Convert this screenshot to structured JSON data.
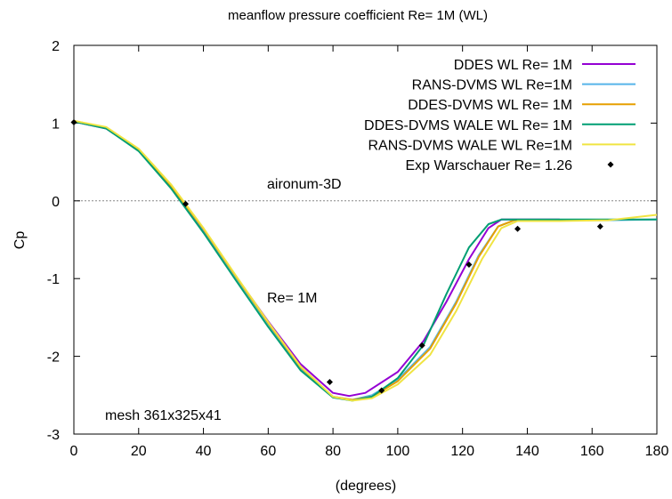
{
  "chart_data": {
    "type": "line",
    "title": "meanflow pressure coefficient  Re= 1M (WL)",
    "xlabel": "(degrees)",
    "ylabel": "Cp",
    "xlim": [
      0,
      180
    ],
    "ylim": [
      -3,
      2
    ],
    "xticks": [
      0,
      20,
      40,
      60,
      80,
      100,
      120,
      140,
      160,
      180
    ],
    "yticks": [
      -3,
      -2,
      -1,
      0,
      1,
      2
    ],
    "grid": false,
    "legend_position": "top-right",
    "zero_line": true,
    "annotations": [
      "aironum-3D",
      "Re= 1M",
      "mesh 361x325x41"
    ],
    "series": [
      {
        "name": "DDES WL Re= 1M",
        "color": "#9400d3",
        "points": [
          [
            0,
            1.02
          ],
          [
            10,
            0.93
          ],
          [
            20,
            0.65
          ],
          [
            30,
            0.18
          ],
          [
            40,
            -0.38
          ],
          [
            50,
            -0.97
          ],
          [
            60,
            -1.55
          ],
          [
            70,
            -2.1
          ],
          [
            80,
            -2.47
          ],
          [
            85,
            -2.51
          ],
          [
            90,
            -2.47
          ],
          [
            100,
            -2.2
          ],
          [
            108,
            -1.8
          ],
          [
            115,
            -1.3
          ],
          [
            122,
            -0.75
          ],
          [
            128,
            -0.35
          ],
          [
            132,
            -0.24
          ],
          [
            140,
            -0.24
          ],
          [
            150,
            -0.24
          ]
        ]
      },
      {
        "name": "RANS-DVMS WL Re=1M",
        "color": "#56b4e9",
        "points": [
          [
            0,
            1.02
          ],
          [
            10,
            0.94
          ],
          [
            20,
            0.66
          ],
          [
            30,
            0.19
          ],
          [
            40,
            -0.37
          ],
          [
            50,
            -0.98
          ],
          [
            60,
            -1.58
          ],
          [
            70,
            -2.15
          ],
          [
            80,
            -2.52
          ],
          [
            86,
            -2.56
          ],
          [
            92,
            -2.5
          ],
          [
            100,
            -2.3
          ],
          [
            110,
            -1.88
          ],
          [
            118,
            -1.3
          ],
          [
            125,
            -0.7
          ],
          [
            131,
            -0.33
          ],
          [
            136,
            -0.25
          ],
          [
            150,
            -0.25
          ],
          [
            165,
            -0.25
          ],
          [
            180,
            -0.24
          ]
        ]
      },
      {
        "name": "DDES-DVMS WL Re= 1M",
        "color": "#e69f00",
        "points": [
          [
            0,
            1.03
          ],
          [
            10,
            0.94
          ],
          [
            20,
            0.66
          ],
          [
            30,
            0.19
          ],
          [
            40,
            -0.36
          ],
          [
            50,
            -0.97
          ],
          [
            60,
            -1.57
          ],
          [
            70,
            -2.14
          ],
          [
            80,
            -2.52
          ],
          [
            86,
            -2.56
          ],
          [
            92,
            -2.52
          ],
          [
            100,
            -2.32
          ],
          [
            110,
            -1.9
          ],
          [
            118,
            -1.32
          ],
          [
            125,
            -0.72
          ],
          [
            131,
            -0.33
          ],
          [
            136,
            -0.25
          ],
          [
            150,
            -0.25
          ]
        ]
      },
      {
        "name": "DDES-DVMS WALE WL Re= 1M",
        "color": "#009e73",
        "points": [
          [
            0,
            1.02
          ],
          [
            10,
            0.93
          ],
          [
            20,
            0.64
          ],
          [
            30,
            0.16
          ],
          [
            40,
            -0.41
          ],
          [
            50,
            -1.02
          ],
          [
            60,
            -1.62
          ],
          [
            70,
            -2.18
          ],
          [
            80,
            -2.53
          ],
          [
            86,
            -2.57
          ],
          [
            92,
            -2.52
          ],
          [
            100,
            -2.28
          ],
          [
            108,
            -1.85
          ],
          [
            115,
            -1.2
          ],
          [
            122,
            -0.6
          ],
          [
            128,
            -0.3
          ],
          [
            132,
            -0.24
          ],
          [
            140,
            -0.24
          ],
          [
            160,
            -0.24
          ],
          [
            180,
            -0.24
          ]
        ]
      },
      {
        "name": "RANS-DVMS WALE WL Re=1M",
        "color": "#f0e442",
        "points": [
          [
            0,
            1.03
          ],
          [
            10,
            0.95
          ],
          [
            20,
            0.67
          ],
          [
            30,
            0.21
          ],
          [
            40,
            -0.35
          ],
          [
            50,
            -0.96
          ],
          [
            60,
            -1.56
          ],
          [
            70,
            -2.13
          ],
          [
            80,
            -2.52
          ],
          [
            86,
            -2.57
          ],
          [
            92,
            -2.54
          ],
          [
            100,
            -2.36
          ],
          [
            110,
            -1.98
          ],
          [
            118,
            -1.42
          ],
          [
            126,
            -0.75
          ],
          [
            132,
            -0.35
          ],
          [
            137,
            -0.26
          ],
          [
            150,
            -0.26
          ],
          [
            165,
            -0.25
          ],
          [
            180,
            -0.18
          ]
        ]
      }
    ],
    "scatter": {
      "name": "Exp Warschauer Re= 1.26",
      "color": "#000000",
      "points": [
        [
          0,
          1.01
        ],
        [
          34.5,
          -0.04
        ],
        [
          79,
          -2.33
        ],
        [
          95,
          -2.44
        ],
        [
          107.5,
          -1.86
        ],
        [
          122,
          -0.82
        ],
        [
          137,
          -0.36
        ],
        [
          162.5,
          -0.33
        ]
      ]
    }
  }
}
